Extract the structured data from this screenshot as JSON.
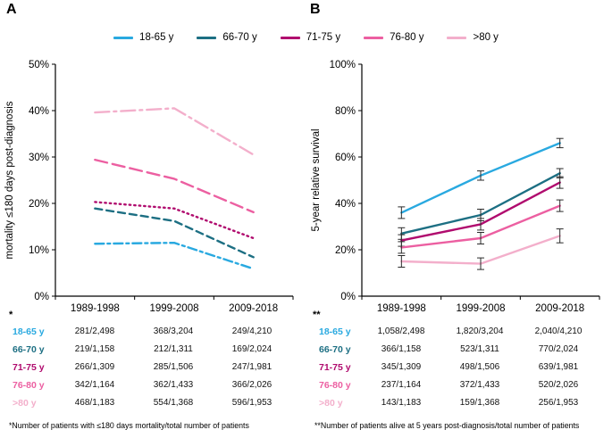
{
  "figure": {
    "panel_a_label": "A",
    "panel_b_label": "B",
    "footnote_a_marker": "*",
    "footnote_b_marker": "**",
    "footnote_a": "*Number of patients with ≤180 days mortality/total number of patients",
    "footnote_b": "**Number of patients alive at 5 years post-diagnosis/total number of patients"
  },
  "legend": {
    "position": "top",
    "items": [
      {
        "label": "18-65 y",
        "color": "#29a9e0"
      },
      {
        "label": "66-70 y",
        "color": "#1d6f83"
      },
      {
        "label": "71-75 y",
        "color": "#b00b6e"
      },
      {
        "label": "76-80 y",
        "color": "#ec5fa1"
      },
      {
        "label": ">80 y",
        "color": "#f3afcb"
      }
    ]
  },
  "chart_data": [
    {
      "id": "A",
      "type": "line",
      "title": "",
      "xlabel": "",
      "ylabel": "mortality ≤180 days post-diagnosis",
      "categories": [
        "1989-1998",
        "1999-2008",
        "2009-2018"
      ],
      "ylim": [
        0,
        50
      ],
      "ytick_step": 10,
      "ytick_suffix": "%",
      "grid": false,
      "legend_position": "top",
      "series": [
        {
          "name": "18-65 y",
          "color": "#29a9e0",
          "style": "dashdot",
          "values": [
            11.3,
            11.5,
            5.9
          ]
        },
        {
          "name": "66-70 y",
          "color": "#1d6f83",
          "style": "dash",
          "values": [
            18.9,
            16.2,
            8.4
          ]
        },
        {
          "name": "71-75 y",
          "color": "#b00b6e",
          "style": "dot",
          "values": [
            20.3,
            18.9,
            12.5
          ]
        },
        {
          "name": "76-80 y",
          "color": "#ec5fa1",
          "style": "longdash",
          "values": [
            29.4,
            25.3,
            18.1
          ]
        },
        {
          "name": ">80 y",
          "color": "#f3afcb",
          "style": "longdashdot",
          "values": [
            39.6,
            40.5,
            30.5
          ]
        }
      ]
    },
    {
      "id": "B",
      "type": "line",
      "title": "",
      "xlabel": "",
      "ylabel": "5-year relative survival",
      "categories": [
        "1989-1998",
        "1999-2008",
        "2009-2018"
      ],
      "ylim": [
        0,
        100
      ],
      "ytick_step": 20,
      "ytick_suffix": "%",
      "grid": false,
      "legend_position": "top",
      "series": [
        {
          "name": "18-65 y",
          "color": "#29a9e0",
          "style": "solid",
          "values": [
            36,
            52,
            66
          ],
          "errors": [
            2.5,
            2,
            2
          ]
        },
        {
          "name": "66-70 y",
          "color": "#1d6f83",
          "style": "solid",
          "values": [
            27,
            35,
            53
          ],
          "errors": [
            2.5,
            2.5,
            2
          ]
        },
        {
          "name": "71-75 y",
          "color": "#b00b6e",
          "style": "solid",
          "values": [
            24,
            31,
            49
          ],
          "errors": [
            2.5,
            2.5,
            2.5
          ]
        },
        {
          "name": "76-80 y",
          "color": "#ec5fa1",
          "style": "solid",
          "values": [
            21,
            25,
            39
          ],
          "errors": [
            2.5,
            2.5,
            2.5
          ]
        },
        {
          "name": ">80 y",
          "color": "#f3afcb",
          "style": "solid",
          "values": [
            15,
            14,
            26
          ],
          "errors": [
            2.5,
            2.5,
            3
          ]
        }
      ]
    }
  ],
  "tables": {
    "A": {
      "rows": [
        {
          "label": "18-65 y",
          "color": "#29a9e0",
          "values": [
            "281/2,498",
            "368/3,204",
            "249/4,210"
          ]
        },
        {
          "label": "66-70 y",
          "color": "#1d6f83",
          "values": [
            "219/1,158",
            "212/1,311",
            "169/2,024"
          ]
        },
        {
          "label": "71-75 y",
          "color": "#b00b6e",
          "values": [
            "266/1,309",
            "285/1,506",
            "247/1,981"
          ]
        },
        {
          "label": "76-80 y",
          "color": "#ec5fa1",
          "values": [
            "342/1,164",
            "362/1,433",
            "366/2,026"
          ]
        },
        {
          "label": ">80 y",
          "color": "#f3afcb",
          "values": [
            "468/1,183",
            "554/1,368",
            "596/1,953"
          ]
        }
      ]
    },
    "B": {
      "rows": [
        {
          "label": "18-65 y",
          "color": "#29a9e0",
          "values": [
            "1,058/2,498",
            "1,820/3,204",
            "2,040/4,210"
          ]
        },
        {
          "label": "66-70 y",
          "color": "#1d6f83",
          "values": [
            "366/1,158",
            "523/1,311",
            "770/2,024"
          ]
        },
        {
          "label": "71-75 y",
          "color": "#b00b6e",
          "values": [
            "345/1,309",
            "498/1,506",
            "639/1,981"
          ]
        },
        {
          "label": "76-80 y",
          "color": "#ec5fa1",
          "values": [
            "237/1,164",
            "372/1,433",
            "520/2,026"
          ]
        },
        {
          "label": ">80 y",
          "color": "#f3afcb",
          "values": [
            "143/1,183",
            "159/1,368",
            "256/1,953"
          ]
        }
      ]
    }
  }
}
